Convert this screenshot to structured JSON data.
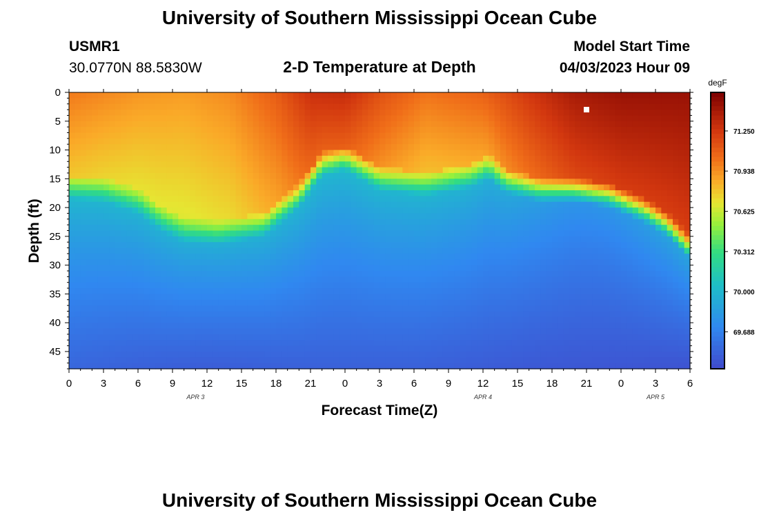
{
  "page_title": "University of Southern Mississippi Ocean Cube",
  "footer_title": "University of Southern Mississippi Ocean Cube",
  "station": {
    "id": "USMR1",
    "coords": "30.0770N  88.5830W"
  },
  "model": {
    "label": "Model Start Time",
    "value": "04/03/2023 Hour 09"
  },
  "chart_data": {
    "type": "heatmap",
    "title": "2-D Temperature at Depth",
    "xlabel": "Forecast Time(Z)",
    "ylabel": "Depth (ft)",
    "unit": "degF",
    "x_range_hours": [
      0,
      54
    ],
    "x_ticks": [
      "0",
      "3",
      "6",
      "9",
      "12",
      "15",
      "18",
      "21",
      "0",
      "3",
      "6",
      "9",
      "12",
      "15",
      "18",
      "21",
      "0",
      "3",
      "6"
    ],
    "date_labels": [
      {
        "text": "APR 3",
        "hour": 11
      },
      {
        "text": "APR 4",
        "hour": 36
      },
      {
        "text": "APR 5",
        "hour": 51
      }
    ],
    "y_range_ft": [
      0,
      48
    ],
    "y_ticks": [
      "0",
      "5",
      "10",
      "15",
      "20",
      "25",
      "30",
      "35",
      "40",
      "45"
    ],
    "colorbar_range": [
      69.4,
      71.55
    ],
    "colorbar_ticks": [
      "71.250",
      "70.938",
      "70.625",
      "70.312",
      "70.000",
      "69.688"
    ],
    "colorbar_tick_values": [
      71.25,
      70.938,
      70.625,
      70.312,
      70.0,
      69.688
    ],
    "thermocline_depth_ft": [
      {
        "hour": 0,
        "depth": 16.5
      },
      {
        "hour": 3,
        "depth": 17
      },
      {
        "hour": 6,
        "depth": 19
      },
      {
        "hour": 8,
        "depth": 22
      },
      {
        "hour": 10,
        "depth": 24
      },
      {
        "hour": 13,
        "depth": 24.5
      },
      {
        "hour": 17,
        "depth": 23
      },
      {
        "hour": 20,
        "depth": 18
      },
      {
        "hour": 22,
        "depth": 12.5
      },
      {
        "hour": 24,
        "depth": 11.5
      },
      {
        "hour": 27,
        "depth": 15
      },
      {
        "hour": 31,
        "depth": 16
      },
      {
        "hour": 35,
        "depth": 14.5
      },
      {
        "hour": 36.5,
        "depth": 13
      },
      {
        "hour": 38,
        "depth": 15.5
      },
      {
        "hour": 41,
        "depth": 17
      },
      {
        "hour": 44,
        "depth": 17
      },
      {
        "hour": 47,
        "depth": 18
      },
      {
        "hour": 50,
        "depth": 20.5
      },
      {
        "hour": 52,
        "depth": 23
      },
      {
        "hour": 54,
        "depth": 27
      }
    ],
    "surface_temperature_degF": [
      {
        "hour": 0,
        "value": 71.0
      },
      {
        "hour": 6,
        "value": 70.92
      },
      {
        "hour": 10,
        "value": 70.9
      },
      {
        "hour": 14,
        "value": 70.95
      },
      {
        "hour": 18,
        "value": 71.1
      },
      {
        "hour": 21,
        "value": 71.28
      },
      {
        "hour": 24,
        "value": 71.3
      },
      {
        "hour": 27,
        "value": 71.15
      },
      {
        "hour": 31,
        "value": 71.02
      },
      {
        "hour": 36,
        "value": 71.08
      },
      {
        "hour": 40,
        "value": 71.25
      },
      {
        "hour": 44,
        "value": 71.4
      },
      {
        "hour": 48,
        "value": 71.45
      },
      {
        "hour": 54,
        "value": 71.45
      }
    ],
    "bottom_temperature_degF": [
      {
        "hour": 0,
        "value": 69.55
      },
      {
        "hour": 6,
        "value": 69.52
      },
      {
        "hour": 12,
        "value": 69.5
      },
      {
        "hour": 20,
        "value": 69.52
      },
      {
        "hour": 30,
        "value": 69.52
      },
      {
        "hour": 40,
        "value": 69.48
      },
      {
        "hour": 54,
        "value": 69.45
      }
    ],
    "markers": [
      {
        "hour": 45,
        "depth": 3
      }
    ]
  }
}
